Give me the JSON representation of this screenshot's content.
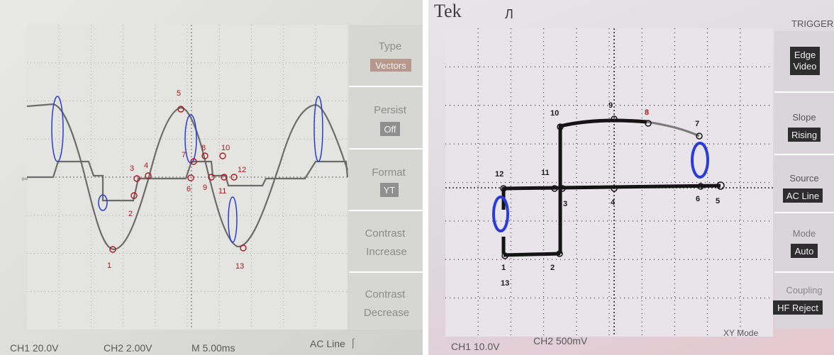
{
  "left_scope": {
    "menu": [
      {
        "label": "Type",
        "value": "Vectors"
      },
      {
        "label": "Persist",
        "value": "Off"
      },
      {
        "label": "Format",
        "value": "YT"
      },
      {
        "label": "Contrast Increase",
        "value": ""
      },
      {
        "label": "Contrast Decrease",
        "value": ""
      }
    ],
    "status": {
      "ch1": "CH1  20.0V",
      "ch2": "CH2  2.00V",
      "time": "M 5.00ms",
      "trigger": "AC Line ⎰"
    },
    "annotations": [
      "1",
      "2",
      "3",
      "4",
      "5",
      "6",
      "7",
      "8",
      "9",
      "10",
      "11",
      "12",
      "13"
    ]
  },
  "right_scope": {
    "header": {
      "brand": "Tek",
      "trig_state": "Л",
      "menu_title": "TRIGGER"
    },
    "menu": [
      {
        "label": "",
        "value": "Edge Video"
      },
      {
        "label": "Slope",
        "value": "Rising"
      },
      {
        "label": "Source",
        "value": "AC Line"
      },
      {
        "label": "Mode",
        "value": "Auto"
      },
      {
        "label": "Coupling",
        "value": "HF Reject"
      }
    ],
    "status": {
      "ch1": "CH1  10.0V",
      "ch2": "CH2  500mV",
      "mode": "XY Mode"
    },
    "annotations": [
      "1",
      "2",
      "3",
      "4",
      "5",
      "6",
      "7",
      "8",
      "9",
      "10",
      "11",
      "12",
      "13"
    ]
  },
  "colors": {
    "annotation_red": "#b0171f",
    "highlight_blue": "#2b3bd6"
  }
}
